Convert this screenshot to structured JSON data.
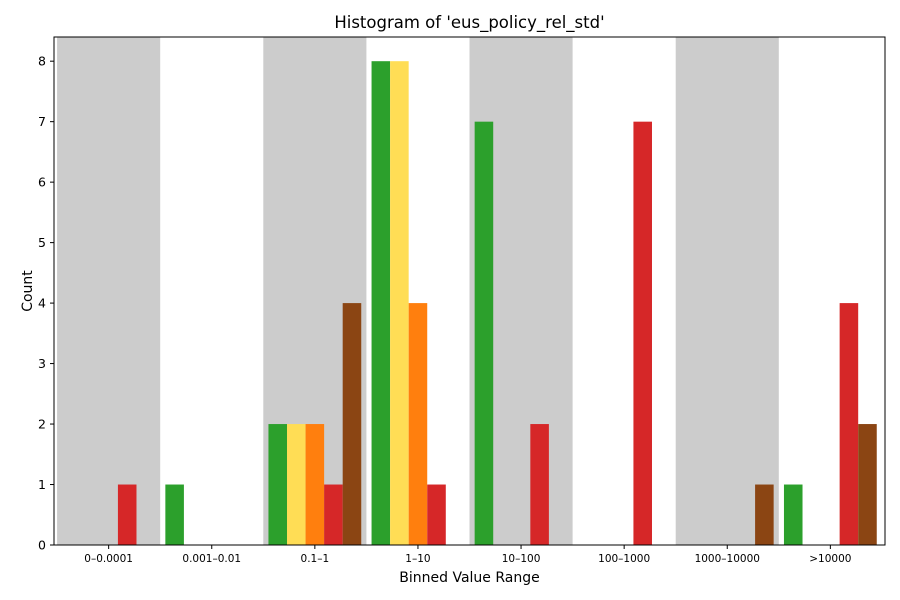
{
  "chart_data": {
    "type": "bar",
    "title": "Histogram of 'eus_policy_rel_std'",
    "xlabel": "Binned Value Range",
    "ylabel": "Count",
    "categories": [
      "0–0.0001",
      "0.001–0.01",
      "0.1–1",
      "1–10",
      "10–100",
      "100–1000",
      "1000–10000",
      ">10000"
    ],
    "ylim": [
      0,
      8.4
    ],
    "yticks": [
      0,
      1,
      2,
      3,
      4,
      5,
      6,
      7,
      8
    ],
    "shaded_bins": [
      0,
      2,
      4,
      6
    ],
    "series": [
      {
        "color": "#2ca02c",
        "values": [
          0,
          1,
          2,
          8,
          7,
          0,
          0,
          1
        ]
      },
      {
        "color": "#ffdd55",
        "values": [
          0,
          0,
          2,
          8,
          0,
          0,
          0,
          0
        ]
      },
      {
        "color": "#ff7f0e",
        "values": [
          0,
          0,
          2,
          4,
          0,
          0,
          0,
          0
        ]
      },
      {
        "color": "#d62728",
        "values": [
          1,
          0,
          1,
          1,
          2,
          7,
          0,
          4
        ]
      },
      {
        "color": "#8b4513",
        "values": [
          0,
          0,
          4,
          0,
          0,
          0,
          1,
          2
        ]
      }
    ],
    "shade_color": "#cccccc",
    "grid": false,
    "legend": false
  }
}
